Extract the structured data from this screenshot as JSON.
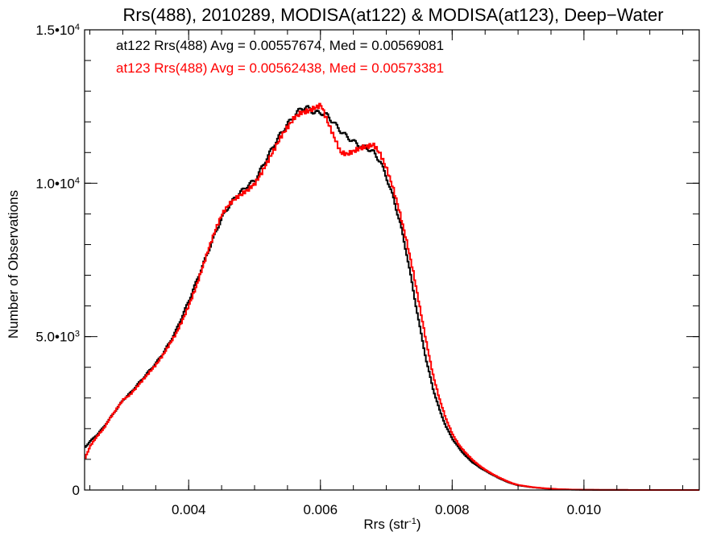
{
  "chart_data": {
    "type": "line",
    "title": "Rrs(488), 2010289, MODISA(at122) & MODISA(at123), Deep−Water",
    "xlabel_main": "Rrs (str",
    "xlabel_sup": "-1",
    "xlabel_close": ")",
    "ylabel": "Number of Observations",
    "xlim": [
      0.00242,
      0.01175
    ],
    "ylim": [
      0,
      15000
    ],
    "x_ticks": [
      {
        "value": 0.004,
        "label": "0.004"
      },
      {
        "value": 0.006,
        "label": "0.006"
      },
      {
        "value": 0.008,
        "label": "0.008"
      },
      {
        "value": 0.01,
        "label": "0.010"
      }
    ],
    "y_ticks": [
      {
        "value": 0,
        "mant": "0",
        "exp": ""
      },
      {
        "value": 5000,
        "mant": "5.0•10",
        "exp": "3"
      },
      {
        "value": 10000,
        "mant": "1.0•10",
        "exp": "4"
      },
      {
        "value": 15000,
        "mant": "1.5•10",
        "exp": "4"
      }
    ],
    "annotations": [
      {
        "text": "at122 Rrs(488) Avg = 0.00557674, Med = 0.00569081",
        "color": "#000000"
      },
      {
        "text": "at123 Rrs(488) Avg = 0.00562438, Med = 0.00573381",
        "color": "#ff0000"
      }
    ],
    "series": [
      {
        "color": "#000000",
        "points": [
          [
            0.00242,
            1400
          ],
          [
            0.0025,
            1600
          ],
          [
            0.0026,
            1800
          ],
          [
            0.0027,
            2050
          ],
          [
            0.0028,
            2350
          ],
          [
            0.0029,
            2650
          ],
          [
            0.003,
            2950
          ],
          [
            0.0031,
            3150
          ],
          [
            0.0032,
            3400
          ],
          [
            0.0033,
            3650
          ],
          [
            0.0034,
            3900
          ],
          [
            0.0035,
            4150
          ],
          [
            0.0036,
            4450
          ],
          [
            0.0037,
            4800
          ],
          [
            0.0038,
            5200
          ],
          [
            0.0039,
            5700
          ],
          [
            0.004,
            6200
          ],
          [
            0.0041,
            6750
          ],
          [
            0.0042,
            7300
          ],
          [
            0.0043,
            7850
          ],
          [
            0.0044,
            8400
          ],
          [
            0.0045,
            8900
          ],
          [
            0.0046,
            9250
          ],
          [
            0.0047,
            9550
          ],
          [
            0.0048,
            9750
          ],
          [
            0.0049,
            9950
          ],
          [
            0.005,
            10100
          ],
          [
            0.0051,
            10500
          ],
          [
            0.0052,
            10900
          ],
          [
            0.0053,
            11300
          ],
          [
            0.0054,
            11650
          ],
          [
            0.0055,
            11950
          ],
          [
            0.0056,
            12200
          ],
          [
            0.0057,
            12450
          ],
          [
            0.0058,
            12450
          ],
          [
            0.0059,
            12300
          ],
          [
            0.006,
            12300
          ],
          [
            0.0061,
            12200
          ],
          [
            0.0062,
            11950
          ],
          [
            0.0063,
            11700
          ],
          [
            0.0064,
            11500
          ],
          [
            0.0065,
            11350
          ],
          [
            0.0066,
            11200
          ],
          [
            0.0067,
            11150
          ],
          [
            0.0068,
            11000
          ],
          [
            0.0069,
            10700
          ],
          [
            0.007,
            10150
          ],
          [
            0.0071,
            9500
          ],
          [
            0.0072,
            8700
          ],
          [
            0.0073,
            7700
          ],
          [
            0.0074,
            6500
          ],
          [
            0.0075,
            5300
          ],
          [
            0.0076,
            4200
          ],
          [
            0.0077,
            3300
          ],
          [
            0.0078,
            2600
          ],
          [
            0.0079,
            2050
          ],
          [
            0.008,
            1650
          ],
          [
            0.0081,
            1350
          ],
          [
            0.0082,
            1100
          ],
          [
            0.0083,
            900
          ],
          [
            0.0084,
            750
          ],
          [
            0.0085,
            620
          ],
          [
            0.0086,
            500
          ],
          [
            0.0087,
            390
          ],
          [
            0.0088,
            290
          ],
          [
            0.0089,
            210
          ],
          [
            0.009,
            150
          ],
          [
            0.0092,
            90
          ],
          [
            0.0094,
            50
          ],
          [
            0.0096,
            25
          ],
          [
            0.0098,
            12
          ],
          [
            0.01,
            6
          ],
          [
            0.0105,
            2
          ],
          [
            0.011,
            1
          ],
          [
            0.01175,
            0
          ]
        ]
      },
      {
        "color": "#ff0000",
        "points": [
          [
            0.00242,
            1050
          ],
          [
            0.0025,
            1450
          ],
          [
            0.0026,
            1750
          ],
          [
            0.0027,
            2000
          ],
          [
            0.0028,
            2350
          ],
          [
            0.0029,
            2650
          ],
          [
            0.003,
            2950
          ],
          [
            0.0031,
            3100
          ],
          [
            0.0032,
            3350
          ],
          [
            0.0033,
            3600
          ],
          [
            0.0034,
            3850
          ],
          [
            0.0035,
            4100
          ],
          [
            0.0036,
            4400
          ],
          [
            0.0037,
            4750
          ],
          [
            0.0038,
            5100
          ],
          [
            0.0039,
            5550
          ],
          [
            0.004,
            6050
          ],
          [
            0.0041,
            6600
          ],
          [
            0.0042,
            7250
          ],
          [
            0.0043,
            7900
          ],
          [
            0.0044,
            8500
          ],
          [
            0.0045,
            9000
          ],
          [
            0.0046,
            9300
          ],
          [
            0.0047,
            9500
          ],
          [
            0.0048,
            9650
          ],
          [
            0.0049,
            9800
          ],
          [
            0.005,
            10000
          ],
          [
            0.0051,
            10350
          ],
          [
            0.0052,
            10750
          ],
          [
            0.0053,
            11150
          ],
          [
            0.0054,
            11550
          ],
          [
            0.0055,
            11850
          ],
          [
            0.0056,
            12150
          ],
          [
            0.0057,
            12300
          ],
          [
            0.0058,
            12350
          ],
          [
            0.0059,
            12450
          ],
          [
            0.006,
            12550
          ],
          [
            0.0061,
            12000
          ],
          [
            0.0062,
            11500
          ],
          [
            0.0063,
            11000
          ],
          [
            0.0064,
            10950
          ],
          [
            0.0065,
            11050
          ],
          [
            0.0066,
            11150
          ],
          [
            0.0067,
            11200
          ],
          [
            0.0068,
            11250
          ],
          [
            0.0069,
            10950
          ],
          [
            0.007,
            10450
          ],
          [
            0.0071,
            9800
          ],
          [
            0.0072,
            9000
          ],
          [
            0.0073,
            8100
          ],
          [
            0.0074,
            7100
          ],
          [
            0.0075,
            5950
          ],
          [
            0.0076,
            4800
          ],
          [
            0.0077,
            3750
          ],
          [
            0.0078,
            2950
          ],
          [
            0.0079,
            2300
          ],
          [
            0.008,
            1800
          ],
          [
            0.0081,
            1450
          ],
          [
            0.0082,
            1200
          ],
          [
            0.0083,
            980
          ],
          [
            0.0084,
            800
          ],
          [
            0.0085,
            650
          ],
          [
            0.0086,
            520
          ],
          [
            0.0087,
            410
          ],
          [
            0.0088,
            310
          ],
          [
            0.0089,
            220
          ],
          [
            0.009,
            160
          ],
          [
            0.0092,
            95
          ],
          [
            0.0094,
            55
          ],
          [
            0.0096,
            28
          ],
          [
            0.0098,
            14
          ],
          [
            0.01,
            7
          ],
          [
            0.0105,
            2
          ],
          [
            0.011,
            1
          ],
          [
            0.01175,
            0
          ]
        ]
      }
    ]
  }
}
